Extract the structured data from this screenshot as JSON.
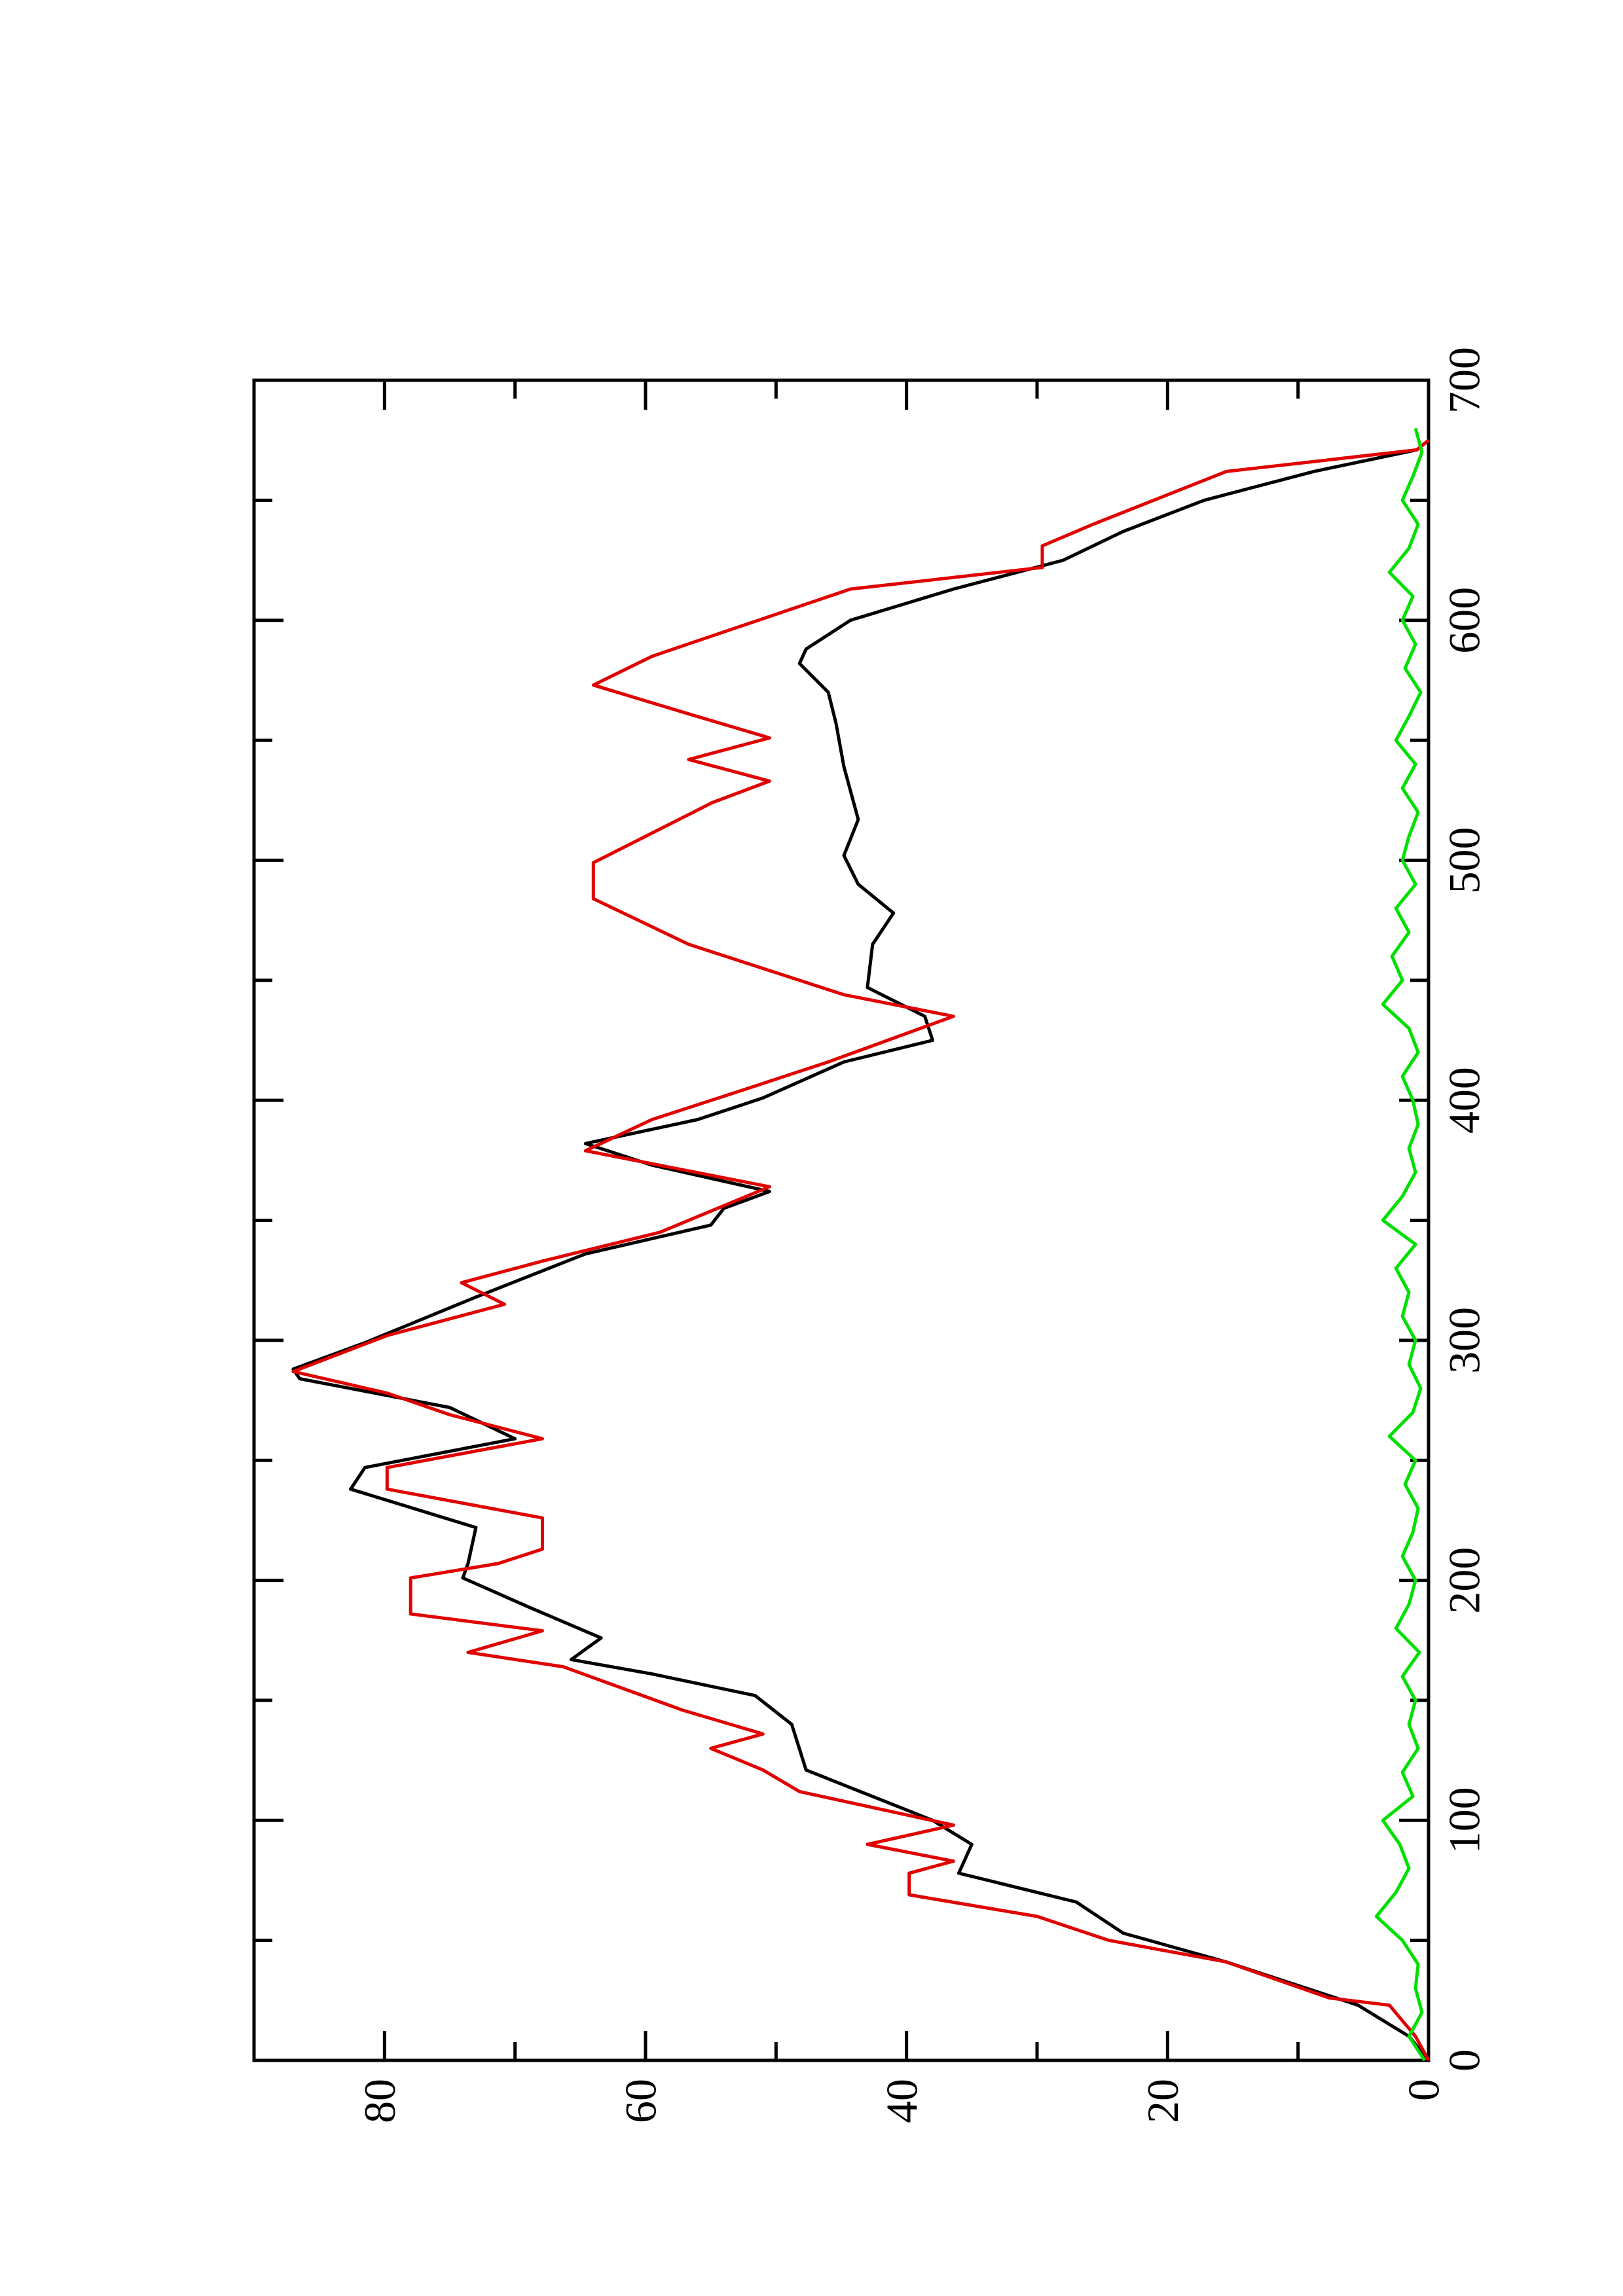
{
  "chart_data": {
    "type": "line",
    "xlim": [
      0,
      700
    ],
    "xticks": [
      0,
      100,
      200,
      300,
      400,
      500,
      600,
      700
    ],
    "xminor_ticks": [
      50,
      150,
      250,
      350,
      450,
      550,
      650
    ],
    "ylim": [
      0,
      90
    ],
    "yticks": [
      0,
      20,
      40,
      60,
      80
    ],
    "yminor_ticks": [
      10,
      30,
      50,
      70
    ],
    "rotated": true,
    "series": [
      {
        "color": "#000000",
        "x": [
          0,
          10,
          23,
          41,
          53,
          66,
          78,
          90,
          100,
          121,
          140,
          152,
          161,
          167,
          176,
          189,
          201,
          207,
          222,
          238,
          247,
          259,
          272,
          284,
          288,
          299,
          318,
          336,
          348,
          355,
          362,
          373,
          382,
          392,
          401,
          416,
          425,
          435,
          447,
          465,
          478,
          490,
          502,
          517,
          539,
          557,
          570,
          582,
          588,
          600,
          613,
          625,
          637,
          650,
          662,
          671,
          675
        ],
        "values": [
          0,
          1.5,
          5.4,
          15.5,
          23.4,
          27,
          36,
          35,
          38,
          47.7,
          48.8,
          51.6,
          59.5,
          65.7,
          63.4,
          69,
          74,
          73.6,
          73,
          82.6,
          81.5,
          70,
          75,
          86.5,
          87,
          81.5,
          73,
          64.6,
          55,
          54,
          50.5,
          59.5,
          64.6,
          56,
          51,
          44.8,
          38,
          38.6,
          43,
          42.6,
          41,
          43.7,
          44.8,
          43.7,
          44.8,
          45.4,
          46,
          48.2,
          47.7,
          44.3,
          36.4,
          28,
          23.4,
          17.2,
          8.8,
          0.9,
          0
        ]
      },
      {
        "color": "#e00000",
        "x": [
          0,
          10,
          23,
          26,
          41,
          50,
          60,
          69,
          78,
          83,
          90,
          98,
          112,
          121,
          130,
          136,
          146,
          164,
          170,
          179,
          186,
          201,
          207,
          213,
          226,
          238,
          247,
          259,
          269,
          278,
          287,
          302,
          315,
          324,
          333,
          345,
          364,
          379,
          392,
          404,
          416,
          435,
          444,
          465,
          484,
          499,
          524,
          533,
          542,
          551,
          561,
          573,
          585,
          613,
          622,
          631,
          640,
          662,
          671,
          675
        ],
        "values": [
          0,
          1,
          3,
          7.6,
          15.5,
          24.5,
          30,
          39.8,
          39.8,
          36.4,
          43,
          36.4,
          48.2,
          51,
          55,
          51,
          57.2,
          66.3,
          73.6,
          67.9,
          78,
          78,
          71.3,
          67.9,
          67.9,
          79.8,
          79.8,
          67.9,
          75,
          79.8,
          87,
          79.8,
          70.8,
          74.1,
          67.9,
          58.9,
          50.5,
          64.6,
          59.5,
          52.7,
          46,
          36.4,
          44.8,
          56.7,
          64,
          64,
          54.9,
          50.5,
          56.7,
          50.5,
          56.7,
          64,
          59.5,
          44.3,
          29.6,
          29.6,
          25.7,
          15.5,
          0.9,
          0
        ]
      },
      {
        "color": "#00e000",
        "x": [
          0,
          10,
          20,
          30,
          40,
          50,
          60,
          70,
          80,
          90,
          100,
          110,
          120,
          130,
          140,
          150,
          160,
          170,
          180,
          190,
          200,
          210,
          220,
          230,
          240,
          250,
          260,
          270,
          280,
          290,
          300,
          310,
          320,
          330,
          340,
          350,
          360,
          370,
          380,
          390,
          400,
          410,
          420,
          430,
          440,
          450,
          460,
          470,
          480,
          490,
          500,
          510,
          520,
          530,
          540,
          550,
          560,
          570,
          580,
          590,
          600,
          610,
          620,
          630,
          640,
          650,
          660,
          670,
          680
        ],
        "values": [
          0.3,
          1.5,
          0.5,
          1,
          0.8,
          2,
          4,
          2.5,
          1.5,
          2.2,
          3.5,
          1.2,
          2,
          0.8,
          1.5,
          1,
          2,
          0.7,
          2.5,
          1.5,
          1,
          2,
          1.2,
          0.8,
          1.8,
          1,
          3,
          1.2,
          0.6,
          1.5,
          1,
          2,
          1.5,
          2.5,
          1,
          3.5,
          2,
          1,
          1.5,
          0.8,
          1.2,
          2,
          0.8,
          1.5,
          3.5,
          2,
          2.8,
          1.5,
          2.5,
          1,
          2,
          1.5,
          0.8,
          2,
          1,
          2.5,
          1.5,
          0.6,
          1.8,
          1,
          2,
          1.2,
          3,
          1.5,
          0.8,
          2,
          1.2,
          0.5,
          1
        ]
      }
    ]
  }
}
